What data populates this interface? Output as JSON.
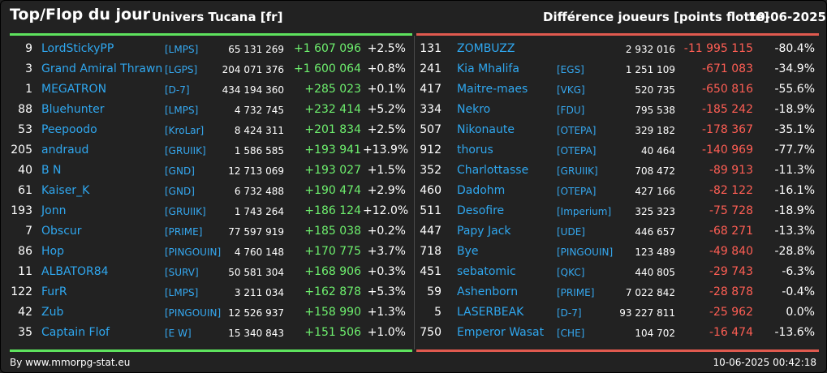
{
  "header": {
    "title": "Top/Flop du jour",
    "universe": "Univers Tucana [fr]",
    "metric": "Différence joueurs [points flotte]",
    "date": "10-06-2025"
  },
  "colors": {
    "top_accent": "#5ee35e",
    "flop_accent": "#e05a4f",
    "name_link": "#2fa7ef",
    "background": "#222222"
  },
  "top": [
    {
      "rank": "9",
      "name": "LordStickyPP",
      "alliance": "[LMPS]",
      "points": "65 131 269",
      "diff": "+1 607 096",
      "pct": "+2.5%"
    },
    {
      "rank": "3",
      "name": "Grand Amiral Thrawn",
      "alliance": "[LGPS]",
      "points": "204 071 376",
      "diff": "+1 600 064",
      "pct": "+0.8%"
    },
    {
      "rank": "1",
      "name": "MEGATRON",
      "alliance": "[D-7]",
      "points": "434 194 360",
      "diff": "+285 023",
      "pct": "+0.1%"
    },
    {
      "rank": "88",
      "name": "Bluehunter",
      "alliance": "[LMPS]",
      "points": "4 732 745",
      "diff": "+232 414",
      "pct": "+5.2%"
    },
    {
      "rank": "53",
      "name": "Peepoodo",
      "alliance": "[KroLar]",
      "points": "8 424 311",
      "diff": "+201 834",
      "pct": "+2.5%"
    },
    {
      "rank": "205",
      "name": "andraud",
      "alliance": "[GRUIIK]",
      "points": "1 586 585",
      "diff": "+193 941",
      "pct": "+13.9%"
    },
    {
      "rank": "40",
      "name": "B N",
      "alliance": "[GND]",
      "points": "12 713 069",
      "diff": "+193 027",
      "pct": "+1.5%"
    },
    {
      "rank": "61",
      "name": "Kaiser_K",
      "alliance": "[GND]",
      "points": "6 732 488",
      "diff": "+190 474",
      "pct": "+2.9%"
    },
    {
      "rank": "193",
      "name": "Jonn",
      "alliance": "[GRUIIK]",
      "points": "1 743 264",
      "diff": "+186 124",
      "pct": "+12.0%"
    },
    {
      "rank": "7",
      "name": "Obscur",
      "alliance": "[PRIME]",
      "points": "77 597 919",
      "diff": "+185 038",
      "pct": "+0.2%"
    },
    {
      "rank": "86",
      "name": "Hop",
      "alliance": "[PINGOUIN]",
      "points": "4 760 148",
      "diff": "+170 775",
      "pct": "+3.7%"
    },
    {
      "rank": "11",
      "name": "ALBATOR84",
      "alliance": "[SURV]",
      "points": "50 581 304",
      "diff": "+168 906",
      "pct": "+0.3%"
    },
    {
      "rank": "122",
      "name": "FurR",
      "alliance": "[LMPS]",
      "points": "3 211 034",
      "diff": "+162 878",
      "pct": "+5.3%"
    },
    {
      "rank": "42",
      "name": "Zub",
      "alliance": "[PINGOUIN]",
      "points": "12 526 937",
      "diff": "+158 990",
      "pct": "+1.3%"
    },
    {
      "rank": "35",
      "name": "Captain Flof",
      "alliance": "[E W]",
      "points": "15 340 843",
      "diff": "+151 506",
      "pct": "+1.0%"
    }
  ],
  "flop": [
    {
      "rank": "131",
      "name": "ZOMBUZZ",
      "alliance": "",
      "points": "2 932 016",
      "diff": "-11 995 115",
      "pct": "-80.4%"
    },
    {
      "rank": "241",
      "name": "Kia Mhalifa",
      "alliance": "[EGS]",
      "points": "1 251 109",
      "diff": "-671 083",
      "pct": "-34.9%"
    },
    {
      "rank": "417",
      "name": "Maitre-maes",
      "alliance": "[VKG]",
      "points": "520 735",
      "diff": "-650 816",
      "pct": "-55.6%"
    },
    {
      "rank": "334",
      "name": "Nekro",
      "alliance": "[FDU]",
      "points": "795 538",
      "diff": "-185 242",
      "pct": "-18.9%"
    },
    {
      "rank": "507",
      "name": "Nikonaute",
      "alliance": "[OTEPA]",
      "points": "329 182",
      "diff": "-178 367",
      "pct": "-35.1%"
    },
    {
      "rank": "912",
      "name": "thorus",
      "alliance": "[OTEPA]",
      "points": "40 464",
      "diff": "-140 969",
      "pct": "-77.7%"
    },
    {
      "rank": "352",
      "name": "Charlottasse",
      "alliance": "[GRUIIK]",
      "points": "708 472",
      "diff": "-89 913",
      "pct": "-11.3%"
    },
    {
      "rank": "460",
      "name": "Dadohm",
      "alliance": "[OTEPA]",
      "points": "427 166",
      "diff": "-82 122",
      "pct": "-16.1%"
    },
    {
      "rank": "511",
      "name": "Desofire",
      "alliance": "[Imperium]",
      "points": "325 323",
      "diff": "-75 728",
      "pct": "-18.9%"
    },
    {
      "rank": "447",
      "name": "Papy Jack",
      "alliance": "[UDE]",
      "points": "446 657",
      "diff": "-68 271",
      "pct": "-13.3%"
    },
    {
      "rank": "718",
      "name": "Bye",
      "alliance": "[PINGOUIN]",
      "points": "123 489",
      "diff": "-49 840",
      "pct": "-28.8%"
    },
    {
      "rank": "451",
      "name": "sebatomic",
      "alliance": "[QKC]",
      "points": "440 805",
      "diff": "-29 743",
      "pct": "-6.3%"
    },
    {
      "rank": "59",
      "name": "Ashenborn",
      "alliance": "[PRIME]",
      "points": "7 022 842",
      "diff": "-28 878",
      "pct": "-0.4%"
    },
    {
      "rank": "5",
      "name": "LASERBEAK",
      "alliance": "[D-7]",
      "points": "93 227 811",
      "diff": "-25 962",
      "pct": "0.0%"
    },
    {
      "rank": "750",
      "name": "Emperor Wasat",
      "alliance": "[CHE]",
      "points": "104 702",
      "diff": "-16 474",
      "pct": "-13.6%"
    }
  ],
  "footer": {
    "source": "By www.mmorpg-stat.eu",
    "timestamp": "10-06-2025 00:42:18"
  }
}
